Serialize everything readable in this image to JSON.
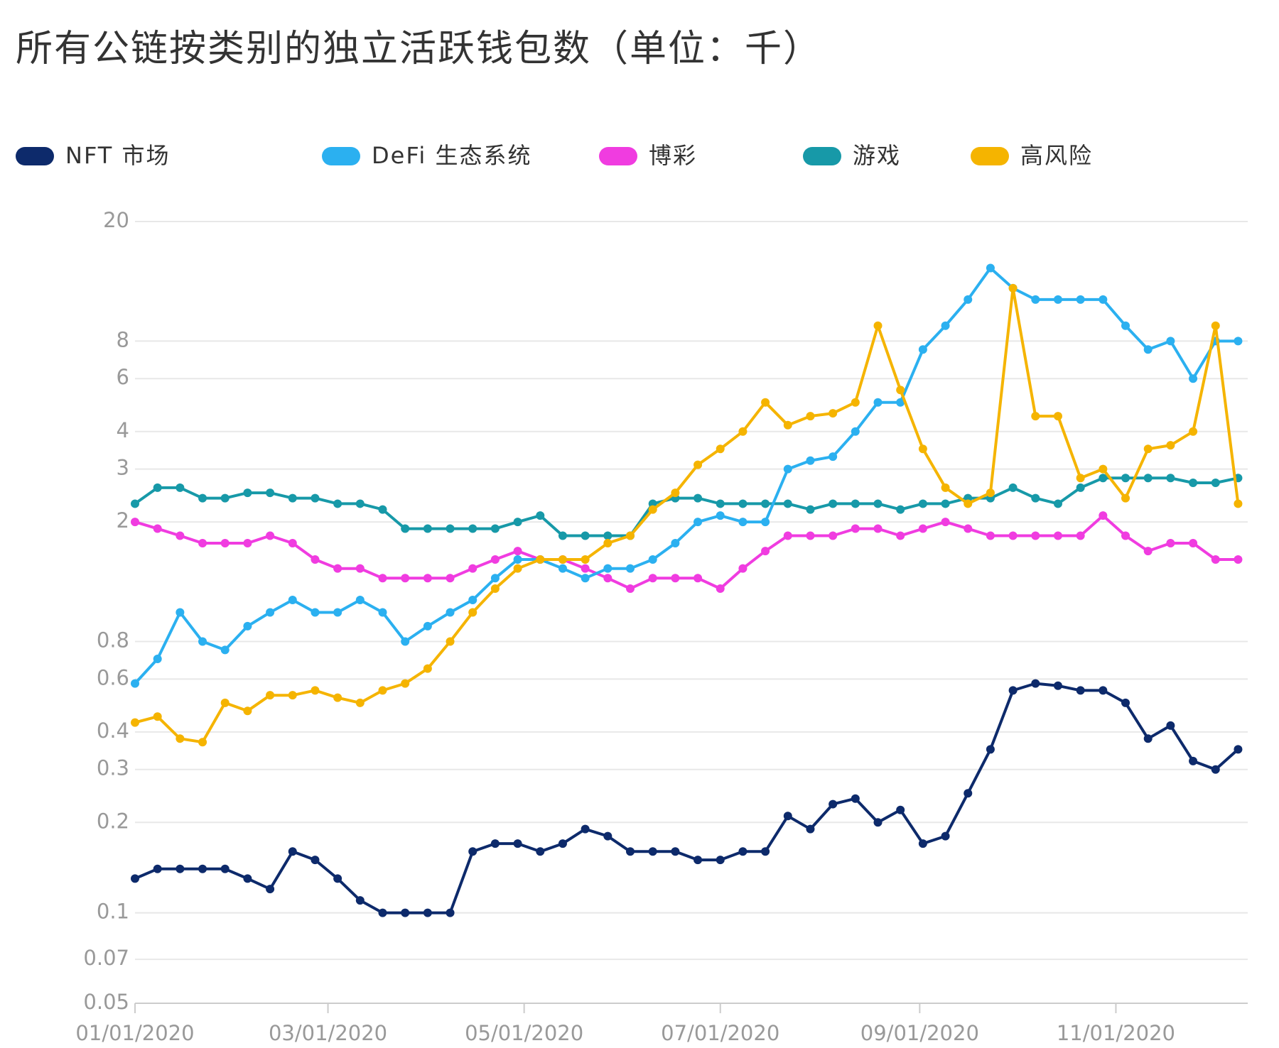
{
  "chart_data": {
    "type": "line",
    "title": "所有公链按类别的独立活跃钱包数（单位：千）",
    "x": [
      "01/01/2020",
      "01/08/2020",
      "01/15/2020",
      "01/22/2020",
      "01/29/2020",
      "02/05/2020",
      "02/12/2020",
      "02/19/2020",
      "02/26/2020",
      "03/04/2020",
      "03/11/2020",
      "03/18/2020",
      "03/25/2020",
      "04/01/2020",
      "04/08/2020",
      "04/15/2020",
      "04/22/2020",
      "04/29/2020",
      "05/06/2020",
      "05/13/2020",
      "05/20/2020",
      "05/27/2020",
      "06/03/2020",
      "06/10/2020",
      "06/17/2020",
      "06/24/2020",
      "07/01/2020",
      "07/08/2020",
      "07/15/2020",
      "07/22/2020",
      "07/29/2020",
      "08/05/2020",
      "08/12/2020",
      "08/19/2020",
      "08/26/2020",
      "09/02/2020",
      "09/09/2020",
      "09/16/2020",
      "09/23/2020",
      "09/30/2020",
      "10/07/2020",
      "10/14/2020",
      "10/21/2020",
      "10/28/2020",
      "11/04/2020",
      "11/11/2020",
      "11/18/2020",
      "11/25/2020",
      "12/02/2020",
      "12/09/2020"
    ],
    "series": [
      {
        "name": "NFT 市场",
        "color": "#0d2a6b",
        "values": [
          0.13,
          0.14,
          0.14,
          0.14,
          0.14,
          0.13,
          0.12,
          0.16,
          0.15,
          0.13,
          0.11,
          0.1,
          0.1,
          0.1,
          0.1,
          0.16,
          0.17,
          0.17,
          0.16,
          0.17,
          0.19,
          0.18,
          0.16,
          0.16,
          0.16,
          0.15,
          0.15,
          0.16,
          0.16,
          0.21,
          0.19,
          0.23,
          0.24,
          0.2,
          0.22,
          0.17,
          0.18,
          0.25,
          0.35,
          0.55,
          0.58,
          0.57,
          0.55,
          0.55,
          0.5,
          0.38,
          0.42,
          0.32,
          0.3,
          0.35
        ]
      },
      {
        "name": "DeFi 生态系统",
        "color": "#2bb0f0",
        "values": [
          0.58,
          0.7,
          1.0,
          0.8,
          0.75,
          0.9,
          1.0,
          1.1,
          1.0,
          1.0,
          1.1,
          1.0,
          0.8,
          0.9,
          1.0,
          1.1,
          1.3,
          1.5,
          1.5,
          1.4,
          1.3,
          1.4,
          1.4,
          1.5,
          1.7,
          2.0,
          2.1,
          2.0,
          2.0,
          3.0,
          3.2,
          3.3,
          4.0,
          5.0,
          5.0,
          7.5,
          9,
          11,
          14,
          12,
          11,
          11,
          11,
          11,
          9,
          7.5,
          8,
          6,
          8,
          8
        ]
      },
      {
        "name": "博彩",
        "color": "#f03ce0",
        "values": [
          2.0,
          1.9,
          1.8,
          1.7,
          1.7,
          1.7,
          1.8,
          1.7,
          1.5,
          1.4,
          1.4,
          1.3,
          1.3,
          1.3,
          1.3,
          1.4,
          1.5,
          1.6,
          1.5,
          1.5,
          1.4,
          1.3,
          1.2,
          1.3,
          1.3,
          1.3,
          1.2,
          1.4,
          1.6,
          1.8,
          1.8,
          1.8,
          1.9,
          1.9,
          1.8,
          1.9,
          2.0,
          1.9,
          1.8,
          1.8,
          1.8,
          1.8,
          1.8,
          2.1,
          1.8,
          1.6,
          1.7,
          1.7,
          1.5,
          1.5
        ]
      },
      {
        "name": "游戏",
        "color": "#1799a8",
        "values": [
          2.3,
          2.6,
          2.6,
          2.4,
          2.4,
          2.5,
          2.5,
          2.4,
          2.4,
          2.3,
          2.3,
          2.2,
          1.9,
          1.9,
          1.9,
          1.9,
          1.9,
          2.0,
          2.1,
          1.8,
          1.8,
          1.8,
          1.8,
          2.3,
          2.4,
          2.4,
          2.3,
          2.3,
          2.3,
          2.3,
          2.2,
          2.3,
          2.3,
          2.3,
          2.2,
          2.3,
          2.3,
          2.4,
          2.4,
          2.6,
          2.4,
          2.3,
          2.6,
          2.8,
          2.8,
          2.8,
          2.8,
          2.7,
          2.7,
          2.8
        ]
      },
      {
        "name": "高风险",
        "color": "#f5b400",
        "values": [
          0.43,
          0.45,
          0.38,
          0.37,
          0.5,
          0.47,
          0.53,
          0.53,
          0.55,
          0.52,
          0.5,
          0.55,
          0.58,
          0.65,
          0.8,
          1.0,
          1.2,
          1.4,
          1.5,
          1.5,
          1.5,
          1.7,
          1.8,
          2.2,
          2.5,
          3.1,
          3.5,
          4.0,
          5.0,
          4.2,
          4.5,
          4.6,
          5.0,
          9.0,
          5.5,
          3.5,
          2.6,
          2.3,
          2.5,
          12,
          4.5,
          4.5,
          2.8,
          3.0,
          2.4,
          3.5,
          3.6,
          4.0,
          9.0,
          2.3
        ]
      }
    ],
    "xlim": [
      "01/01/2020",
      "12/12/2020"
    ],
    "xticks": [
      "01/01/2020",
      "03/01/2020",
      "05/01/2020",
      "07/01/2020",
      "09/01/2020",
      "11/01/2020"
    ],
    "ylim": [
      0.05,
      20
    ],
    "yticks": [
      0.05,
      0.07,
      0.1,
      0.2,
      0.3,
      0.4,
      0.6,
      0.8,
      2,
      3,
      4,
      6,
      8,
      20
    ],
    "log_y": true,
    "grid": true
  }
}
